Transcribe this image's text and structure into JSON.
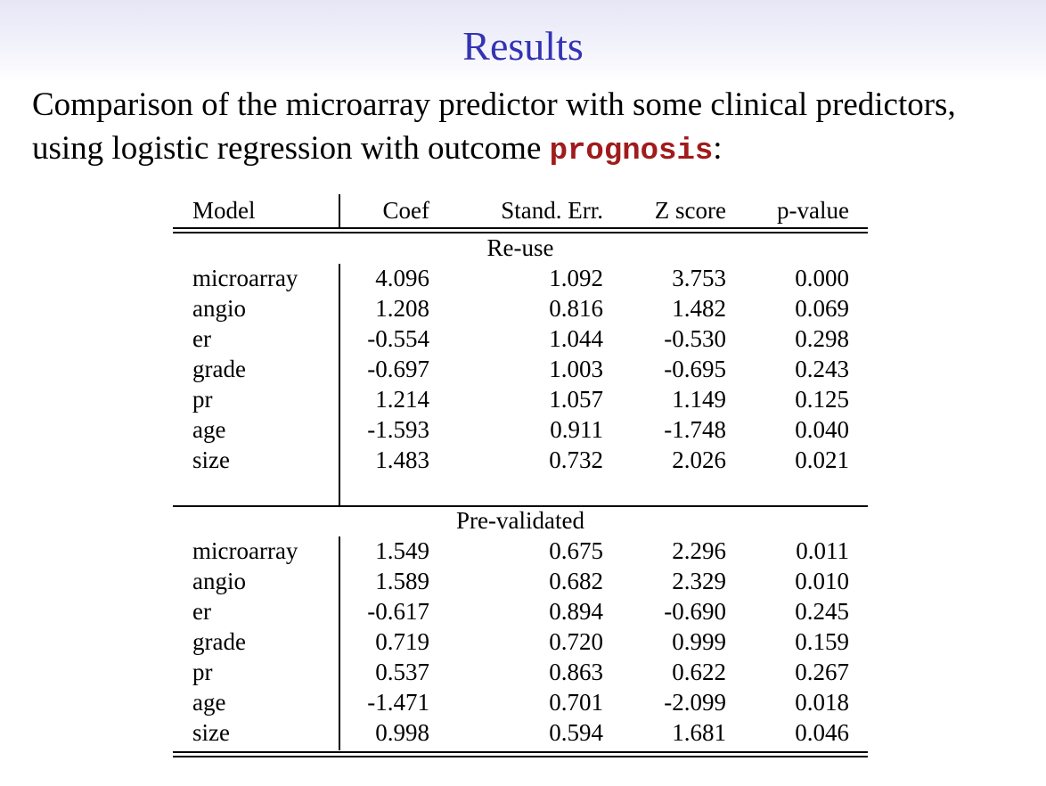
{
  "slide": {
    "title": "Results",
    "intro_text": "Comparison of the microarray predictor with some clinical predictors, using logistic regression with outcome ",
    "intro_keyword": "prognosis",
    "intro_suffix": ":"
  },
  "table": {
    "columns": [
      "Model",
      "Coef",
      "Stand. Err.",
      "Z score",
      "p-value"
    ],
    "sections": [
      {
        "label": "Re-use",
        "rows": [
          [
            "microarray",
            "4.096",
            "1.092",
            "3.753",
            "0.000"
          ],
          [
            "angio",
            "1.208",
            "0.816",
            "1.482",
            "0.069"
          ],
          [
            "er",
            "-0.554",
            "1.044",
            "-0.530",
            "0.298"
          ],
          [
            "grade",
            "-0.697",
            "1.003",
            "-0.695",
            "0.243"
          ],
          [
            "pr",
            "1.214",
            "1.057",
            "1.149",
            "0.125"
          ],
          [
            "age",
            "-1.593",
            "0.911",
            "-1.748",
            "0.040"
          ],
          [
            "size",
            "1.483",
            "0.732",
            "2.026",
            "0.021"
          ]
        ]
      },
      {
        "label": "Pre-validated",
        "rows": [
          [
            "microarray",
            "1.549",
            "0.675",
            "2.296",
            "0.011"
          ],
          [
            "angio",
            "1.589",
            "0.682",
            "2.329",
            "0.010"
          ],
          [
            "er",
            "-0.617",
            "0.894",
            "-0.690",
            "0.245"
          ],
          [
            "grade",
            "0.719",
            "0.720",
            "0.999",
            "0.159"
          ],
          [
            "pr",
            "0.537",
            "0.863",
            "0.622",
            "0.267"
          ],
          [
            "age",
            "-1.471",
            "0.701",
            "-2.099",
            "0.018"
          ],
          [
            "size",
            "0.998",
            "0.594",
            "1.681",
            "0.046"
          ]
        ]
      }
    ]
  }
}
